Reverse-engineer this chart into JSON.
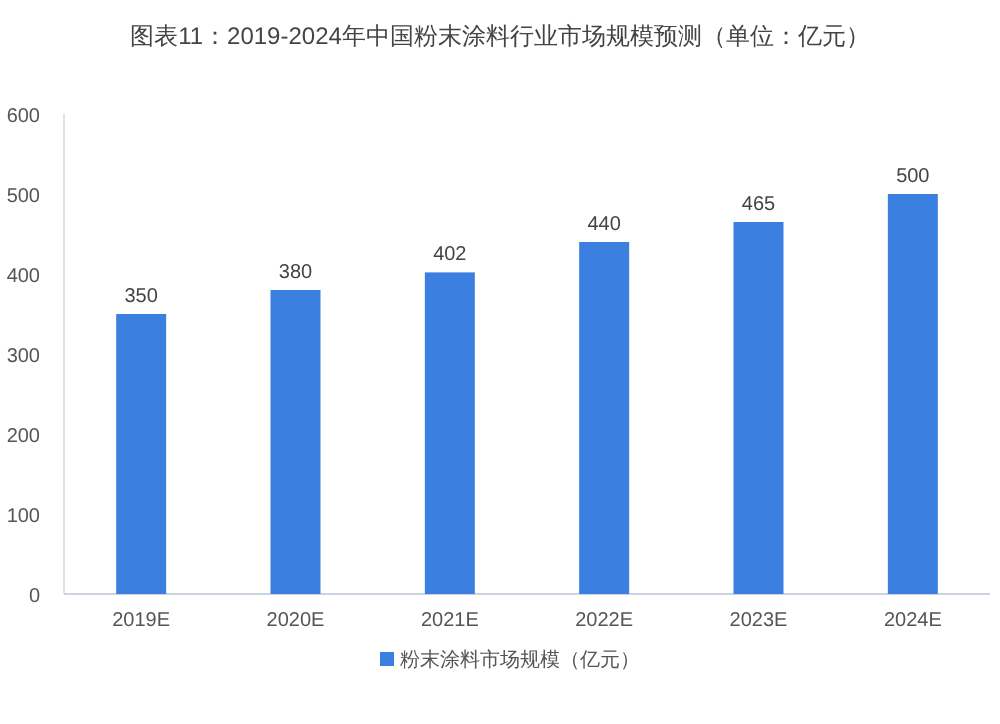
{
  "chart_data": {
    "type": "bar",
    "title": "图表11：2019-2024年中国粉末涂料行业市场规模预测（单位：亿元）",
    "categories": [
      "2019E",
      "2020E",
      "2021E",
      "2022E",
      "2023E",
      "2024E"
    ],
    "series": [
      {
        "name": "粉末涂料市场规模（亿元）",
        "color": "#3b7fe0",
        "values": [
          350,
          380,
          402,
          440,
          465,
          500
        ]
      }
    ],
    "ylim": [
      0,
      600
    ],
    "yticks": [
      0,
      100,
      200,
      300,
      400,
      500,
      600
    ],
    "data_labels": true,
    "legend": "bottom",
    "grid": false
  }
}
